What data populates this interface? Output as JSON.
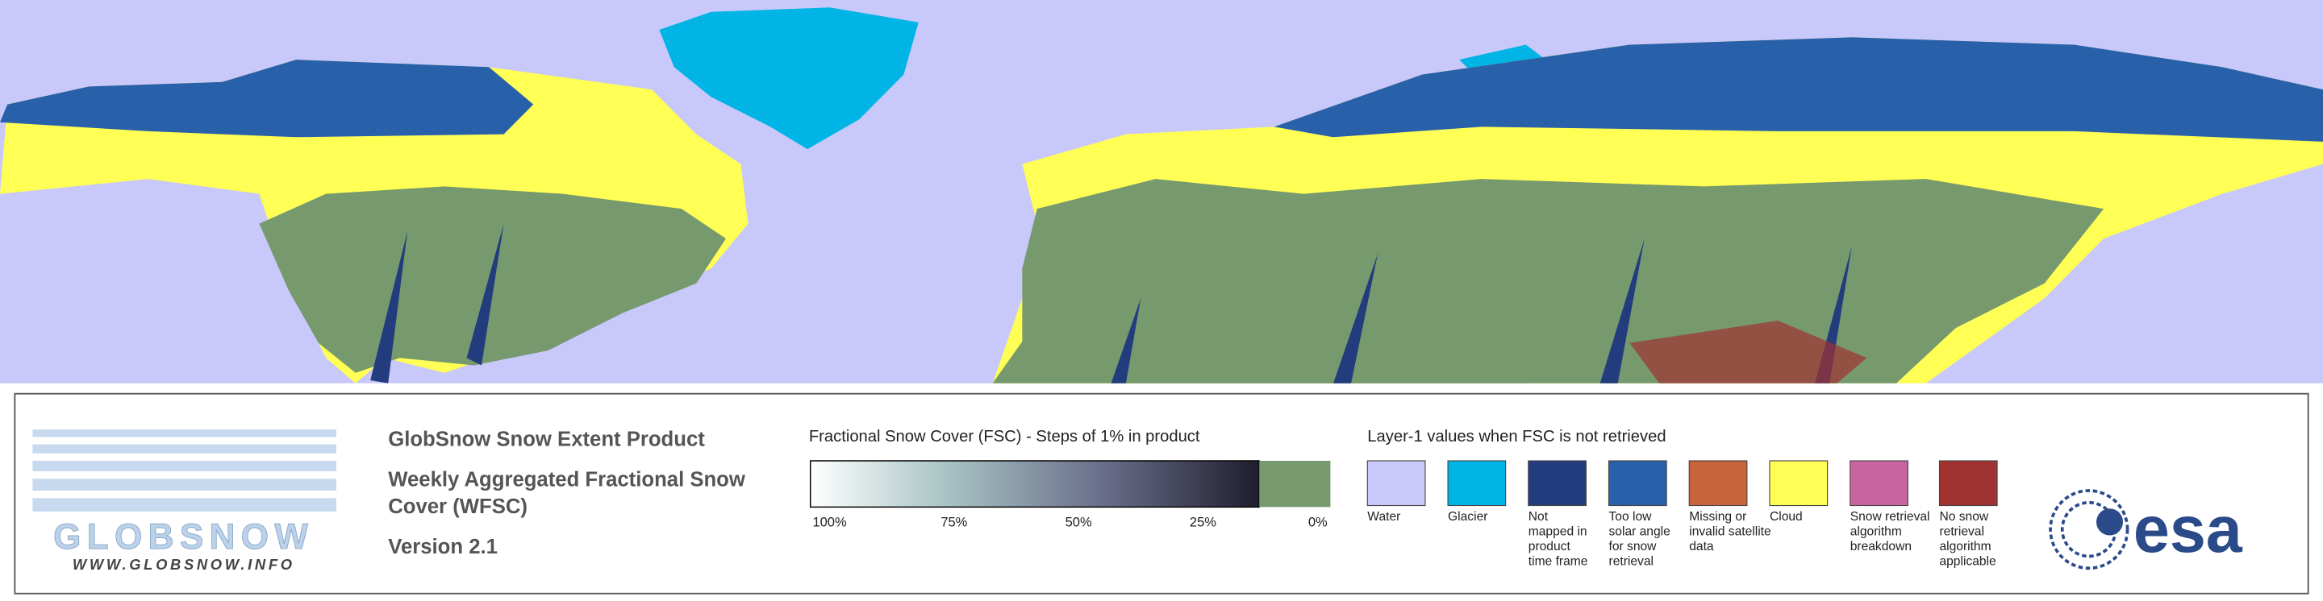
{
  "product": {
    "title": "GlobSnow Snow Extent Product",
    "subtitle": "Weekly Aggregated Fractional Snow Cover (WFSC)",
    "version": "Version 2.1"
  },
  "logo": {
    "name": "GLOBSNOW",
    "url": "WWW.GLOBSNOW.INFO",
    "agency": "esa"
  },
  "colorbar": {
    "title": "Fractional Snow Cover (FSC) - Steps of 1% in product",
    "labels": [
      "100%",
      "75%",
      "50%",
      "25%",
      "0%"
    ]
  },
  "layer1": {
    "title": "Layer-1 values when FSC is not retrieved",
    "items": [
      {
        "label": [
          "Water"
        ],
        "color": "#c8c8fa"
      },
      {
        "label": [
          "Glacier"
        ],
        "color": "#00b4e6"
      },
      {
        "label": [
          "Not",
          "mapped in",
          "product",
          "time frame"
        ],
        "color": "#233c7d"
      },
      {
        "label": [
          "Too low",
          "solar angle",
          "for snow",
          "retrieval"
        ],
        "color": "#2860aa"
      },
      {
        "label": [
          "Missing or",
          "invalid satellite",
          "data"
        ],
        "color": "#c8643c"
      },
      {
        "label": [
          "Cloud"
        ],
        "color": "#ffff55"
      },
      {
        "label": [
          "Snow retrieval",
          "algorithm",
          "breakdown"
        ],
        "color": "#c864a0"
      },
      {
        "label": [
          "No snow",
          "retrieval",
          "algorithm",
          "applicable"
        ],
        "color": "#a03232"
      }
    ]
  }
}
